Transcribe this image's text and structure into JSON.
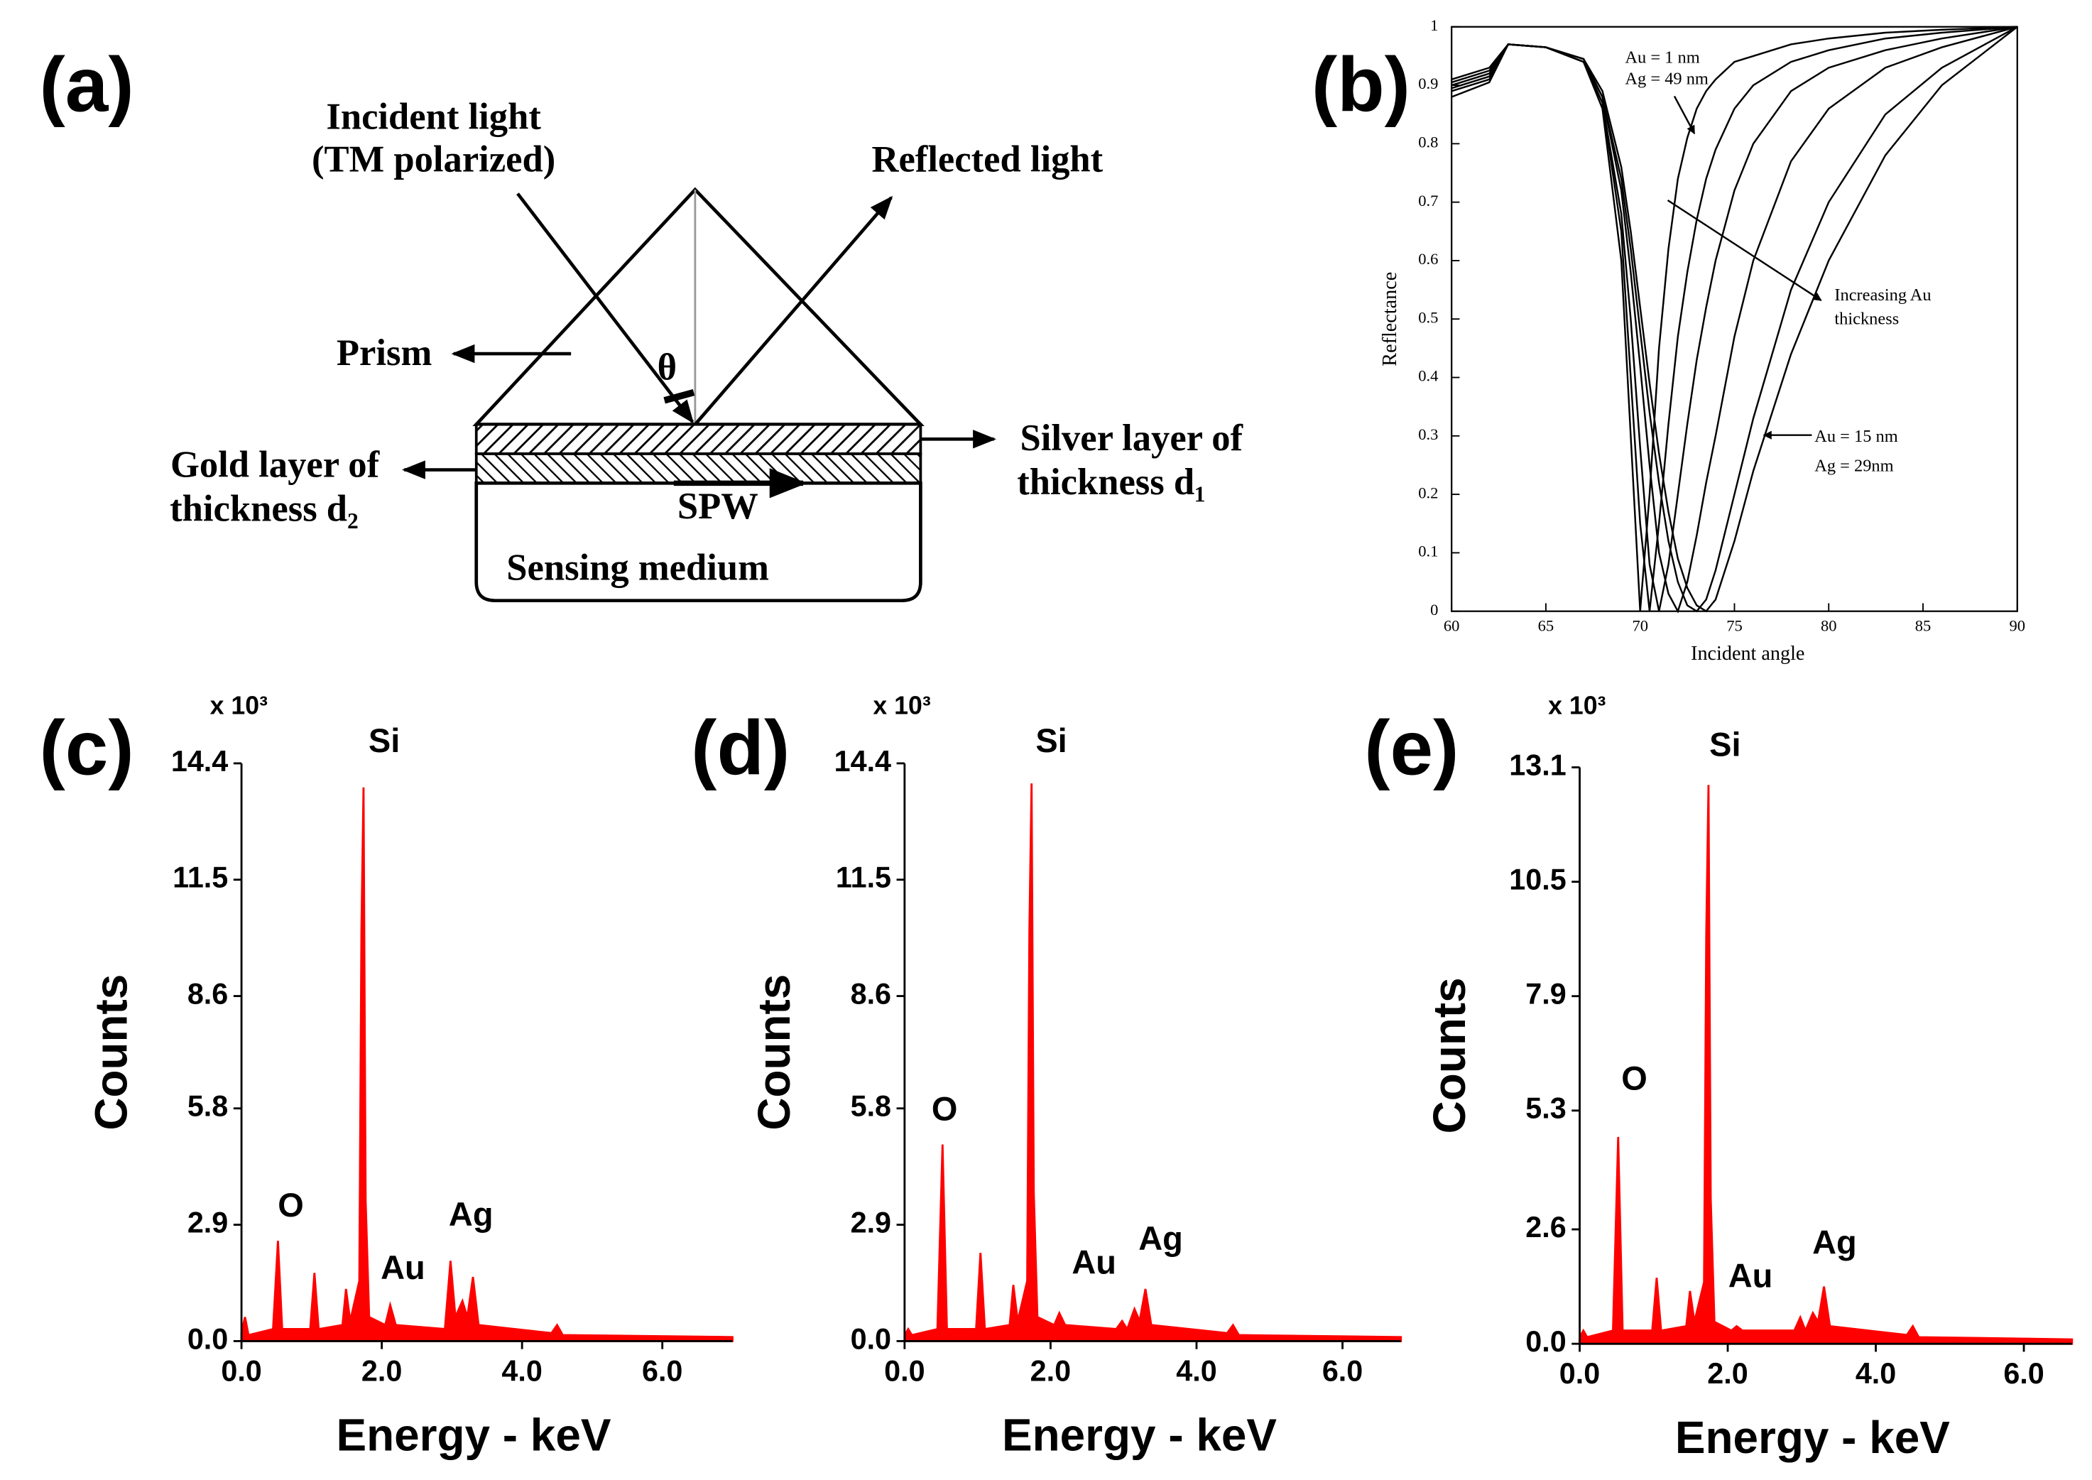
{
  "diagram": {
    "label": "(a)",
    "texts": {
      "incident": "Incident light",
      "polarized": "(TM polarized)",
      "reflected": "Reflected light",
      "prism": "Prism",
      "theta": "θ",
      "gold1": "Gold layer of",
      "gold2": "thickness d₂",
      "silver1": "Silver layer of",
      "silver2": "thickness d₁",
      "spw": "SPW",
      "medium": "Sensing medium"
    }
  },
  "chart_data": [
    {
      "type": "line",
      "label": "(b)",
      "xlabel": "Incident angle",
      "ylabel": "Reflectance",
      "x": [
        60,
        62,
        63,
        65,
        67,
        68,
        69,
        69.5,
        70,
        70.5,
        71,
        71.5,
        72,
        72.5,
        73,
        73.5,
        74,
        75,
        76,
        78,
        80,
        83,
        86,
        90
      ],
      "series": [
        {
          "color": "#000000",
          "values": [
            0.91,
            0.93,
            0.97,
            0.965,
            0.94,
            0.86,
            0.6,
            0.3,
            0,
            0.2,
            0.45,
            0.62,
            0.74,
            0.81,
            0.86,
            0.89,
            0.91,
            0.94,
            0.95,
            0.97,
            0.98,
            0.99,
            0.995,
            1
          ]
        },
        {
          "color": "#000000",
          "values": [
            0.905,
            0.925,
            0.97,
            0.965,
            0.94,
            0.87,
            0.65,
            0.4,
            0.15,
            0,
            0.15,
            0.32,
            0.47,
            0.58,
            0.67,
            0.74,
            0.79,
            0.86,
            0.9,
            0.94,
            0.96,
            0.98,
            0.99,
            1
          ]
        },
        {
          "color": "#000000",
          "values": [
            0.9,
            0.92,
            0.97,
            0.965,
            0.94,
            0.87,
            0.68,
            0.5,
            0.28,
            0.08,
            0,
            0.08,
            0.2,
            0.32,
            0.43,
            0.52,
            0.6,
            0.72,
            0.8,
            0.89,
            0.93,
            0.96,
            0.98,
            1
          ]
        },
        {
          "color": "#000000",
          "values": [
            0.895,
            0.915,
            0.97,
            0.965,
            0.94,
            0.88,
            0.72,
            0.58,
            0.42,
            0.25,
            0.1,
            0.03,
            0,
            0.05,
            0.13,
            0.22,
            0.3,
            0.47,
            0.6,
            0.77,
            0.86,
            0.93,
            0.965,
            1
          ]
        },
        {
          "color": "#000000",
          "values": [
            0.89,
            0.91,
            0.97,
            0.965,
            0.945,
            0.88,
            0.74,
            0.62,
            0.48,
            0.34,
            0.22,
            0.12,
            0.05,
            0.01,
            0,
            0.02,
            0.07,
            0.2,
            0.33,
            0.55,
            0.7,
            0.85,
            0.93,
            1
          ]
        },
        {
          "color": "#000000",
          "values": [
            0.88,
            0.905,
            0.97,
            0.965,
            0.945,
            0.89,
            0.76,
            0.65,
            0.52,
            0.39,
            0.27,
            0.17,
            0.09,
            0.04,
            0.01,
            0,
            0.02,
            0.12,
            0.24,
            0.44,
            0.6,
            0.78,
            0.9,
            1
          ]
        }
      ],
      "xlim": [
        60,
        90
      ],
      "ylim": [
        0,
        1
      ],
      "xticks": [
        60,
        65,
        70,
        75,
        80,
        85,
        90
      ],
      "yticks": [
        0,
        0.1,
        0.2,
        0.3,
        0.4,
        0.5,
        0.6,
        0.7,
        0.8,
        0.9,
        1
      ],
      "annotations": [
        "Au = 1 nm",
        "Ag = 49 nm",
        "Increasing Au",
        "thickness",
        "Au = 15 nm",
        "Ag = 29nm"
      ]
    },
    {
      "type": "area",
      "label": "(c)",
      "y_unit": "x 10³",
      "xlabel": "Energy - keV",
      "ylabel": "Counts",
      "color": "#ff0000",
      "x": [
        0,
        0.05,
        0.1,
        0.45,
        0.52,
        0.58,
        0.98,
        1.04,
        1.1,
        1.44,
        1.49,
        1.55,
        1.68,
        1.71,
        1.74,
        1.77,
        1.82,
        2.05,
        2.12,
        2.2,
        2.9,
        2.98,
        3.05,
        3.15,
        3.22,
        3.3,
        3.38,
        4.42,
        4.5,
        4.58,
        7
      ],
      "values": [
        0.2,
        0.6,
        0.15,
        0.3,
        2.5,
        0.3,
        0.3,
        1.7,
        0.3,
        0.4,
        1.3,
        0.5,
        1.5,
        10.2,
        13.8,
        3.5,
        0.6,
        0.4,
        0.9,
        0.4,
        0.3,
        2.0,
        0.6,
        1.0,
        0.6,
        1.6,
        0.4,
        0.2,
        0.4,
        0.15,
        0.1
      ],
      "xlim": [
        0,
        7
      ],
      "ylim": [
        0,
        14.4
      ],
      "xticks": [
        {
          "value": 0,
          "label": "0.0"
        },
        {
          "value": 2,
          "label": "2.0"
        },
        {
          "value": 4,
          "label": "4.0"
        },
        {
          "value": 6,
          "label": "6.0"
        }
      ],
      "yticks": [
        {
          "value": 0,
          "label": "0.0"
        },
        2.9,
        5.8,
        8.6,
        11.5,
        14.4
      ],
      "peaks": [
        "O",
        "Si",
        "Au",
        "Ag"
      ]
    },
    {
      "type": "area",
      "label": "(d)",
      "y_unit": "x 10³",
      "xlabel": "Energy - keV",
      "ylabel": "Counts",
      "color": "#ff0000",
      "x": [
        0,
        0.05,
        0.1,
        0.45,
        0.52,
        0.58,
        0.98,
        1.04,
        1.1,
        1.44,
        1.49,
        1.55,
        1.68,
        1.71,
        1.74,
        1.77,
        1.82,
        2.05,
        2.12,
        2.2,
        2.9,
        2.98,
        3.05,
        3.15,
        3.22,
        3.3,
        3.38,
        4.42,
        4.5,
        4.58,
        6.8
      ],
      "values": [
        0.15,
        0.3,
        0.15,
        0.3,
        4.9,
        0.3,
        0.3,
        2.2,
        0.3,
        0.4,
        1.4,
        0.5,
        1.5,
        10.2,
        13.9,
        3.7,
        0.6,
        0.4,
        0.7,
        0.4,
        0.3,
        0.5,
        0.3,
        0.8,
        0.5,
        1.3,
        0.4,
        0.2,
        0.4,
        0.15,
        0.1
      ],
      "xlim": [
        0,
        6.8
      ],
      "ylim": [
        0,
        14.4
      ],
      "xticks": [
        {
          "value": 0,
          "label": "0.0"
        },
        {
          "value": 2,
          "label": "2.0"
        },
        {
          "value": 4,
          "label": "4.0"
        },
        {
          "value": 6,
          "label": "6.0"
        }
      ],
      "yticks": [
        {
          "value": 0,
          "label": "0.0"
        },
        2.9,
        5.8,
        8.6,
        11.5,
        14.4
      ],
      "peaks": [
        "O",
        "Si",
        "Au",
        "Ag"
      ]
    },
    {
      "type": "area",
      "label": "(e)",
      "y_unit": "x 10³",
      "xlabel": "Energy - keV",
      "ylabel": "Counts",
      "color": "#ff0000",
      "x": [
        0,
        0.05,
        0.1,
        0.45,
        0.52,
        0.58,
        0.98,
        1.04,
        1.1,
        1.44,
        1.49,
        1.55,
        1.68,
        1.71,
        1.74,
        1.77,
        1.82,
        2.05,
        2.12,
        2.2,
        2.9,
        2.98,
        3.05,
        3.15,
        3.22,
        3.3,
        3.38,
        4.42,
        4.5,
        4.58,
        6.65
      ],
      "values": [
        0.15,
        0.3,
        0.15,
        0.3,
        4.7,
        0.3,
        0.3,
        1.5,
        0.3,
        0.4,
        1.2,
        0.5,
        1.4,
        9.3,
        12.7,
        3.3,
        0.5,
        0.3,
        0.4,
        0.3,
        0.3,
        0.6,
        0.3,
        0.7,
        0.5,
        1.3,
        0.4,
        0.2,
        0.4,
        0.15,
        0.1
      ],
      "xlim": [
        0,
        6.65
      ],
      "ylim": [
        0,
        13.1
      ],
      "xticks": [
        {
          "value": 0,
          "label": "0.0"
        },
        {
          "value": 2,
          "label": "2.0"
        },
        {
          "value": 4,
          "label": "4.0"
        },
        {
          "value": 6,
          "label": "6.0"
        }
      ],
      "yticks": [
        {
          "value": 0,
          "label": "0.0"
        },
        2.6,
        5.3,
        7.9,
        10.5,
        13.1
      ],
      "peaks": [
        "O",
        "Si",
        "Au",
        "Ag"
      ]
    }
  ]
}
